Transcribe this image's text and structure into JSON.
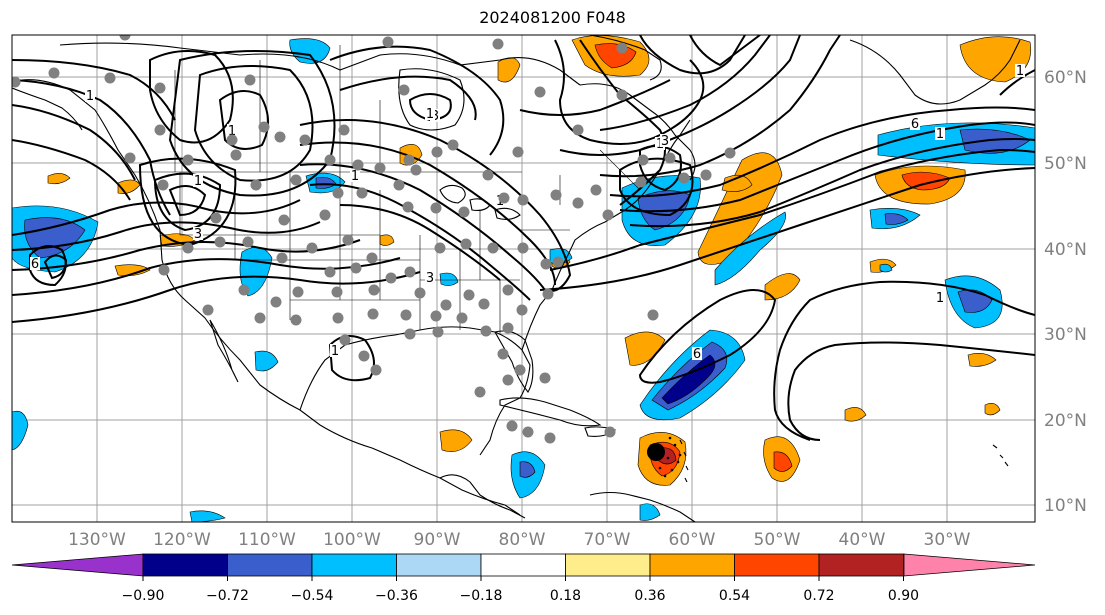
{
  "title": "2024081200 F048",
  "map": {
    "lon_labels": [
      "130°W",
      "120°W",
      "110°W",
      "100°W",
      "90°W",
      "80°W",
      "70°W",
      "60°W",
      "50°W",
      "40°W",
      "30°W"
    ],
    "lat_labels": [
      "60°N",
      "50°N",
      "40°N",
      "30°N",
      "20°N",
      "10°N"
    ],
    "contour_labels": [
      "1",
      "3",
      "1",
      "1",
      "1",
      "3",
      "1",
      "6",
      "1",
      "1",
      "6",
      "3",
      "6",
      "1",
      "1",
      "3",
      "1",
      "1",
      "1"
    ],
    "observation_site_count": 110,
    "hurricane_marker": "storm-center-dot"
  },
  "colorbar": {
    "ticks": [
      "−0.90",
      "−0.72",
      "−0.54",
      "−0.36",
      "−0.18",
      "0.18",
      "0.36",
      "0.54",
      "0.72",
      "0.90"
    ],
    "colors": {
      "under": "#9932CC",
      "bins": [
        "#00008B",
        "#3A5FCD",
        "#00BFFF",
        "#ADD8F5",
        "#FFFFFF",
        "#FFEC8B",
        "#FFA500",
        "#FF4500",
        "#B22222"
      ],
      "over": "#FF82AB"
    }
  },
  "style": {
    "grid_color": "#A0A0A0",
    "contour_color": "#000000",
    "site_color": "#808080"
  }
}
